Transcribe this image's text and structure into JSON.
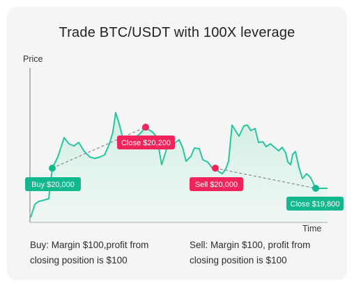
{
  "chart_data": {
    "type": "area",
    "title": "Trade BTC/USDT with 100X leverage",
    "ylabel": "Price",
    "xlabel": "Time",
    "colors": {
      "line": "#27c4a0",
      "fill": "#d5efe6",
      "buy": "#13b88f",
      "sell": "#f0245a",
      "axis": "#9a9a9a"
    },
    "annotations": [
      {
        "label": "Buy $20,000",
        "kind": "buy"
      },
      {
        "label": "Close $20,200",
        "kind": "sell"
      },
      {
        "label": "Sell $20,000",
        "kind": "sell"
      },
      {
        "label": "Close $19,800",
        "kind": "buy"
      }
    ]
  },
  "captions": {
    "left_line1": "Buy: Margin $100,profit from",
    "left_line2": "closing position is $100",
    "right_line1": "Sell: Margin $100, profit from",
    "right_line2": "closing position is $100"
  }
}
